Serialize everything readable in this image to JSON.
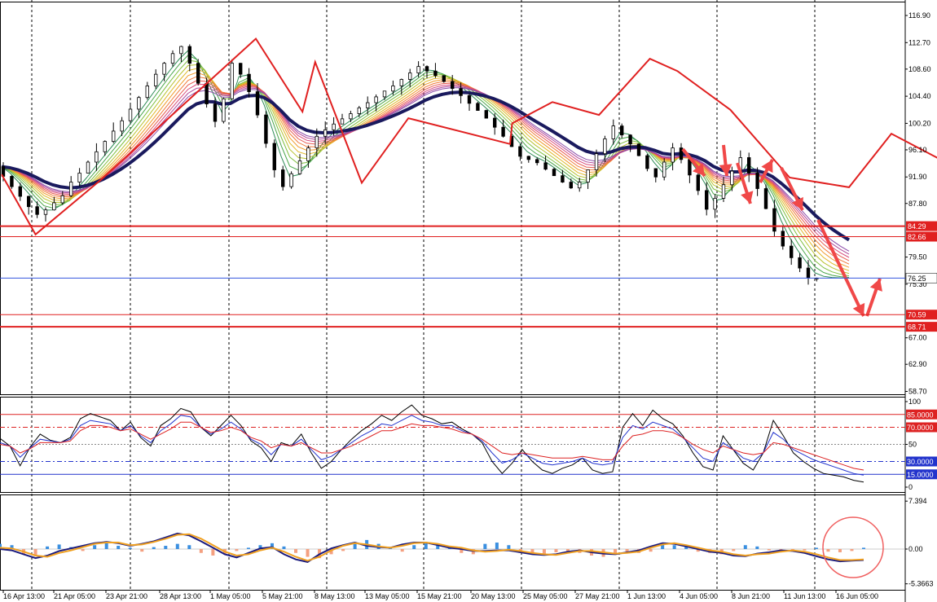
{
  "chart_data": [
    {
      "type": "line",
      "panel": "price",
      "subtype": "candlestick with moving-average ribbon and zigzag",
      "ylim": [
        58.7,
        119.0
      ],
      "y_ticks": [
        "116.90",
        "112.70",
        "108.60",
        "104.40",
        "100.20",
        "96.10",
        "91.90",
        "87.80",
        "79.50",
        "75.30",
        "67.00",
        "62.90",
        "58.70"
      ],
      "x_ticks": [
        "16 Apr 13:00",
        "21 Apr 05:00",
        "23 Apr 21:00",
        "28 Apr 13:00",
        "1 May 05:00",
        "5 May 21:00",
        "8 May 13:00",
        "13 May 05:00",
        "15 May 21:00",
        "20 May 13:00",
        "25 May 05:00",
        "27 May 21:00",
        "1 Jun 13:00",
        "4 Jun 05:00",
        "8 Jun 21:00",
        "11 Jun 13:00",
        "16 Jun 05:00"
      ],
      "close_series": {
        "x": [
          0,
          4,
          8,
          12,
          16,
          20,
          24,
          28,
          32,
          36,
          40,
          44,
          48,
          52,
          56,
          60,
          64,
          68,
          72,
          76,
          80,
          84,
          88,
          92,
          96,
          100,
          104,
          108,
          112,
          116,
          120,
          124,
          128,
          132,
          136,
          140,
          144,
          148,
          152,
          156,
          160,
          164,
          168,
          172,
          176,
          180,
          184,
          188,
          192,
          196,
          200,
          204,
          208,
          212,
          216,
          220,
          224,
          228,
          232,
          236,
          240,
          244,
          248,
          252,
          256,
          260,
          264,
          268,
          272,
          276,
          280,
          284,
          288,
          292,
          296,
          300,
          304,
          308,
          312,
          316,
          320,
          324,
          328,
          332,
          336,
          340,
          344,
          348,
          352,
          356,
          360,
          364,
          368,
          372,
          376,
          380,
          384,
          388,
          392,
          396,
          400
        ],
        "values": [
          93.5,
          92.0,
          90.4,
          88.9,
          87.3,
          86.1,
          86.8,
          87.9,
          89.0,
          91.1,
          92.5,
          94.2,
          95.8,
          97.4,
          99.0,
          100.6,
          102.4,
          104.2,
          106.0,
          107.8,
          109.5,
          111.0,
          112.1,
          109.5,
          106.4,
          103.2,
          100.5,
          104.0,
          109.5,
          107.8,
          105.1,
          101.5,
          97.1,
          93.0,
          90.4,
          92.4,
          94.4,
          96.4,
          98.2,
          99.2,
          100.1,
          100.9,
          101.7,
          102.6,
          103.4,
          104.3,
          105.2,
          106.0,
          107.0,
          108.0,
          109.0,
          108.3,
          107.6,
          106.7,
          105.6,
          104.5,
          103.3,
          102.2,
          101.0,
          99.6,
          98.2,
          96.6,
          95.1,
          94.6,
          94.1,
          93.1,
          92.1,
          91.1,
          90.2,
          91.1,
          93.0,
          95.5,
          97.8,
          99.8,
          98.4,
          97.0,
          95.2,
          93.2,
          91.9,
          94.2,
          96.4,
          94.6,
          92.2,
          89.8,
          86.9,
          88.6,
          90.7,
          92.8,
          94.9,
          92.5,
          90.1,
          87.0,
          83.5,
          81.2,
          79.4,
          77.8,
          76.25,
          76.25,
          76.25,
          76.25,
          76.25
        ]
      },
      "zigzag": [
        {
          "x": 0,
          "y": 92.3
        },
        {
          "x": 16,
          "y": 83.0
        },
        {
          "x": 47,
          "y": 91.5
        },
        {
          "x": 120,
          "y": 113.3
        },
        {
          "x": 142,
          "y": 102.0
        },
        {
          "x": 148,
          "y": 109.7
        },
        {
          "x": 170,
          "y": 91.0
        },
        {
          "x": 192,
          "y": 101.0
        },
        {
          "x": 240,
          "y": 97.0
        },
        {
          "x": 241,
          "y": 100.2
        },
        {
          "x": 260,
          "y": 103.5
        },
        {
          "x": 282,
          "y": 101.5
        },
        {
          "x": 306,
          "y": 110.2
        },
        {
          "x": 319,
          "y": 108.3
        },
        {
          "x": 344,
          "y": 102.3
        },
        {
          "x": 372,
          "y": 91.8
        },
        {
          "x": 400,
          "y": 90.3
        },
        {
          "x": 420,
          "y": 98.6
        },
        {
          "x": 463,
          "y": 91.2
        },
        {
          "x": 476,
          "y": 96.6
        },
        {
          "x": 488,
          "y": 87.6
        },
        {
          "x": 504,
          "y": 94.3
        },
        {
          "x": 520,
          "y": 86.5
        }
      ],
      "horizontal_levels": [
        {
          "value": "84.29",
          "color": "#e02020"
        },
        {
          "value": "82.66",
          "color": "#e02020"
        },
        {
          "value": "76.25",
          "color": "#3355dd"
        },
        {
          "value": "70.59",
          "color": "#e02020"
        },
        {
          "value": "68.71",
          "color": "#e02020"
        }
      ]
    },
    {
      "type": "line",
      "panel": "oscillator",
      "ylim": [
        0,
        100
      ],
      "y_ticks": [
        "100",
        "50",
        "0"
      ],
      "levels": [
        {
          "value": "85.0000",
          "color": "#dd2222"
        },
        {
          "value": "70.0000",
          "color": "#dd2222"
        },
        {
          "value": "30.0000",
          "color": "#2233cc"
        },
        {
          "value": "15.0000",
          "color": "#2233cc"
        }
      ],
      "series": [
        {
          "color": "#000000",
          "values": [
            57,
            48,
            25,
            47,
            62,
            55,
            52,
            58,
            80,
            86,
            82,
            78,
            66,
            76,
            58,
            48,
            72,
            80,
            92,
            88,
            70,
            60,
            72,
            84,
            72,
            54,
            46,
            30,
            52,
            48,
            62,
            40,
            22,
            30,
            44,
            56,
            66,
            74,
            84,
            78,
            88,
            96,
            84,
            80,
            74,
            76,
            68,
            62,
            52,
            30,
            16,
            28,
            44,
            30,
            20,
            16,
            22,
            26,
            34,
            20,
            16,
            18,
            70,
            86,
            72,
            90,
            80,
            74,
            60,
            40,
            24,
            20,
            60,
            44,
            28,
            20,
            40,
            78,
            60,
            40,
            30,
            22,
            16,
            14,
            12,
            8,
            6
          ]
        },
        {
          "color": "#2233cc",
          "values": [
            52,
            48,
            35,
            46,
            56,
            54,
            52,
            56,
            72,
            78,
            76,
            74,
            66,
            72,
            60,
            52,
            66,
            74,
            84,
            82,
            70,
            62,
            68,
            76,
            68,
            56,
            50,
            38,
            50,
            48,
            56,
            44,
            32,
            36,
            44,
            52,
            60,
            66,
            74,
            72,
            78,
            84,
            78,
            76,
            72,
            72,
            66,
            62,
            54,
            40,
            28,
            32,
            40,
            34,
            28,
            26,
            28,
            30,
            34,
            28,
            26,
            28,
            58,
            72,
            68,
            76,
            72,
            68,
            58,
            46,
            34,
            30,
            52,
            44,
            34,
            30,
            40,
            64,
            56,
            44,
            38,
            32,
            28,
            24,
            20,
            16,
            14
          ]
        },
        {
          "color": "#dd2222",
          "values": [
            50,
            48,
            40,
            45,
            52,
            52,
            52,
            54,
            66,
            72,
            72,
            70,
            66,
            68,
            62,
            56,
            62,
            68,
            76,
            76,
            70,
            64,
            66,
            70,
            66,
            58,
            54,
            46,
            50,
            48,
            52,
            46,
            40,
            40,
            44,
            48,
            54,
            60,
            66,
            66,
            70,
            74,
            72,
            72,
            70,
            68,
            64,
            62,
            56,
            48,
            40,
            38,
            40,
            38,
            36,
            34,
            34,
            34,
            36,
            34,
            32,
            32,
            48,
            60,
            62,
            66,
            66,
            64,
            58,
            50,
            44,
            40,
            48,
            44,
            40,
            38,
            40,
            52,
            50,
            46,
            42,
            38,
            34,
            30,
            26,
            22,
            20
          ]
        }
      ]
    },
    {
      "type": "bar",
      "panel": "macd",
      "ylim": [
        -5.3663,
        7.394
      ],
      "y_ticks": [
        "7.394",
        "0.00",
        "-5.3663"
      ],
      "series": [
        {
          "name": "histogram",
          "values": [
            0.8,
            0.6,
            -0.8,
            -1.1,
            0.4,
            0.7,
            0.3,
            -0.3,
            0.6,
            0.9,
            0.5,
            0.2,
            -0.4,
            0.3,
            0.5,
            0.8,
            0.6,
            -0.6,
            -1.0,
            -0.7,
            -0.3,
            0.2,
            0.6,
            0.9,
            0.4,
            -0.6,
            -1.2,
            -1.4,
            -0.8,
            -0.3,
            1.0,
            1.4,
            0.8,
            0.3,
            -0.4,
            0.6,
            0.9,
            0.7,
            0.4,
            -0.6,
            -0.8,
            0.8,
            1.0,
            0.6,
            -0.4,
            -0.6,
            -0.8,
            -0.5,
            -0.3,
            -0.6,
            -1.0,
            -1.2,
            -0.8,
            -0.4,
            -0.6,
            -0.4,
            0.9,
            0.6,
            0.5,
            -0.4,
            -0.6,
            -0.8,
            -0.3,
            0.6,
            0.4,
            -0.2,
            -0.4,
            -0.3,
            -0.2,
            0.2,
            -0.4,
            -0.5,
            -0.3,
            0.2
          ]
        },
        {
          "name": "signal",
          "values": [
            0.2,
            0.1,
            -0.4,
            -1.0,
            -1.2,
            -0.6,
            -0.2,
            0.3,
            0.8,
            1.0,
            1.0,
            0.6,
            0.7,
            1.1,
            1.6,
            2.2,
            2.3,
            1.6,
            0.6,
            -0.4,
            -1.0,
            -0.8,
            -0.2,
            0.2,
            -0.4,
            -1.2,
            -1.8,
            -1.2,
            -0.2,
            0.5,
            0.9,
            0.7,
            0.4,
            0.2,
            0.5,
            0.9,
            1.0,
            0.8,
            0.4,
            0.2,
            -0.2,
            -0.4,
            -0.3,
            -0.1,
            -0.3,
            -0.6,
            -0.8,
            -0.9,
            -0.6,
            -0.3,
            -0.3,
            -0.5,
            -0.7,
            -0.6,
            -0.4,
            0.2,
            0.7,
            0.9,
            0.6,
            0.2,
            -0.2,
            -0.4,
            -0.8,
            -1.0,
            -0.8,
            -0.7,
            -0.4,
            -0.2,
            -0.4,
            -0.8,
            -1.3,
            -1.7,
            -1.7,
            -1.6
          ]
        },
        {
          "name": "macd",
          "values": [
            0.0,
            -0.2,
            -0.8,
            -1.4,
            -1.0,
            -0.3,
            0.1,
            0.5,
            0.9,
            1.1,
            0.9,
            0.5,
            0.8,
            1.2,
            1.8,
            2.4,
            2.1,
            1.2,
            0.2,
            -0.8,
            -1.3,
            -0.6,
            0.1,
            0.3,
            -0.8,
            -1.6,
            -2.0,
            -0.8,
            0.1,
            0.6,
            1.0,
            0.5,
            0.3,
            0.2,
            0.7,
            1.0,
            1.0,
            0.6,
            0.2,
            0.0,
            -0.3,
            -0.3,
            -0.2,
            -0.2,
            -0.5,
            -0.8,
            -0.9,
            -0.8,
            -0.4,
            -0.2,
            -0.5,
            -0.7,
            -0.8,
            -0.5,
            -0.2,
            0.4,
            0.9,
            0.8,
            0.4,
            0.0,
            -0.4,
            -0.6,
            -1.0,
            -1.1,
            -0.7,
            -0.5,
            -0.2,
            -0.3,
            -0.6,
            -1.1,
            -1.6,
            -1.9,
            -1.8,
            -1.7
          ]
        }
      ]
    }
  ]
}
